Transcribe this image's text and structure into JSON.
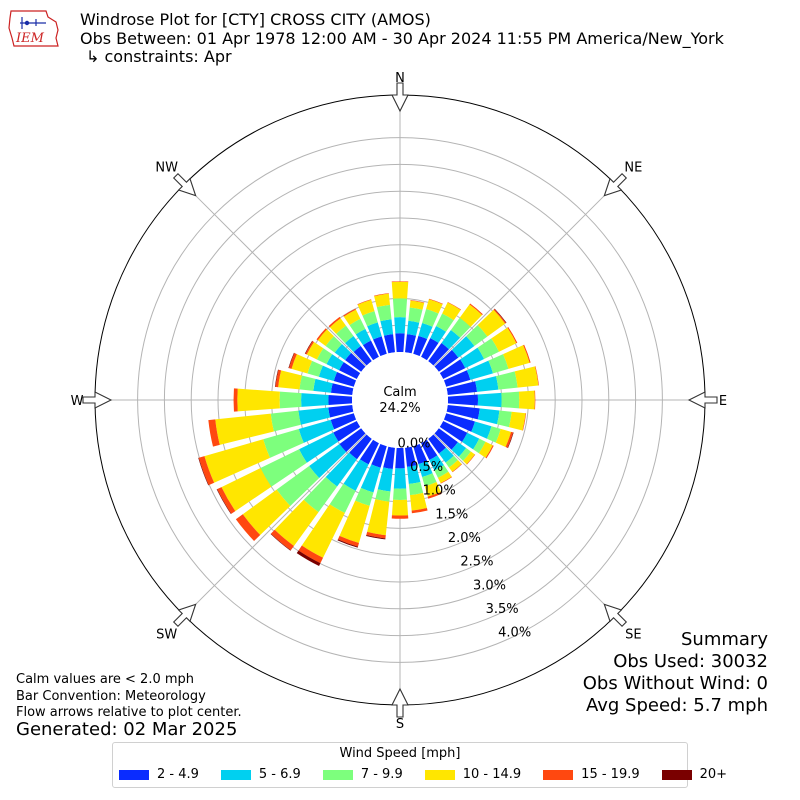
{
  "header": {
    "logo_text": "IEM",
    "title_line1": "Windrose Plot for [CTY] CROSS CITY (AMOS)",
    "title_line2": "Obs Between: 01 Apr 1978 12:00 AM - 30 Apr 2024 11:55 PM America/New_York",
    "title_line3": "↳ constraints: Apr"
  },
  "calm": {
    "label": "Calm",
    "value": "24.2%"
  },
  "notes": {
    "calm_def": "Calm values are < 2.0 mph",
    "bar_conv": "Bar Convention: Meteorology",
    "flow": "Flow arrows relative to plot center.",
    "generated": "Generated: 02 Mar 2025"
  },
  "summary": {
    "title": "Summary",
    "obs_used": "Obs Used: 30032",
    "obs_without_wind": "Obs Without Wind: 0",
    "avg_speed": "Avg Speed: 5.7 mph"
  },
  "legend": {
    "title": "Wind Speed [mph]"
  },
  "colors": {
    "bins": [
      "#0a2cff",
      "#00d0f0",
      "#7dff7d",
      "#ffe600",
      "#ff4810",
      "#7a0000"
    ],
    "grid": "#b4b4b4",
    "logo_red": "#cc2222",
    "logo_blue": "#1a2ea8"
  },
  "chart_data": {
    "type": "windrose",
    "calm_percent": 24.2,
    "radial_axis": {
      "min": 0,
      "max": 4.0,
      "unit": "%",
      "ticks": [
        "0.0%",
        "0.5%",
        "1.0%",
        "1.5%",
        "2.0%",
        "2.5%",
        "3.0%",
        "3.5%",
        "4.0%"
      ]
    },
    "compass_labels": [
      "N",
      "NE",
      "E",
      "SE",
      "S",
      "SW",
      "W",
      "NW"
    ],
    "speed_bins": [
      "2 - 4.9",
      "5 - 6.9",
      "7 - 9.9",
      "10 - 14.9",
      "15 - 19.9",
      "20+"
    ],
    "directions_deg": [
      0,
      10,
      20,
      30,
      40,
      50,
      60,
      70,
      80,
      90,
      100,
      110,
      120,
      130,
      140,
      150,
      160,
      170,
      180,
      190,
      200,
      210,
      220,
      230,
      240,
      250,
      260,
      270,
      280,
      290,
      300,
      310,
      320,
      330,
      340,
      350
    ],
    "cumulative_percent": [
      [
        0.35,
        0.65,
        1.0,
        1.31,
        1.32,
        1.32
      ],
      [
        0.34,
        0.59,
        0.84,
        0.97,
        0.98,
        0.98
      ],
      [
        0.35,
        0.6,
        0.87,
        1.06,
        1.07,
        1.07
      ],
      [
        0.39,
        0.64,
        0.9,
        1.13,
        1.14,
        1.14
      ],
      [
        0.42,
        0.72,
        1.0,
        1.31,
        1.33,
        1.33
      ],
      [
        0.45,
        0.82,
        1.12,
        1.53,
        1.55,
        1.56
      ],
      [
        0.46,
        0.85,
        1.16,
        1.52,
        1.54,
        1.54
      ],
      [
        0.47,
        0.91,
        1.21,
        1.62,
        1.64,
        1.64
      ],
      [
        0.55,
        0.95,
        1.31,
        1.7,
        1.71,
        1.71
      ],
      [
        0.56,
        1.0,
        1.33,
        1.62,
        1.63,
        1.63
      ],
      [
        0.6,
        0.97,
        1.2,
        1.46,
        1.47,
        1.47
      ],
      [
        0.56,
        0.88,
        1.06,
        1.26,
        1.3,
        1.31
      ],
      [
        0.5,
        0.75,
        0.88,
        1.03,
        1.05,
        1.05
      ],
      [
        0.44,
        0.63,
        0.74,
        0.83,
        0.84,
        0.84
      ],
      [
        0.34,
        0.55,
        0.66,
        0.76,
        0.77,
        0.77
      ],
      [
        0.35,
        0.57,
        0.72,
        0.83,
        0.84,
        0.84
      ],
      [
        0.35,
        0.6,
        0.78,
        0.98,
        1.02,
        1.02
      ],
      [
        0.36,
        0.68,
        0.89,
        1.18,
        1.23,
        1.23
      ],
      [
        0.38,
        0.76,
        0.97,
        1.26,
        1.32,
        1.32
      ],
      [
        0.4,
        0.82,
        1.01,
        1.64,
        1.7,
        1.72
      ],
      [
        0.42,
        0.9,
        1.16,
        1.88,
        1.95,
        1.97
      ],
      [
        0.44,
        0.99,
        1.45,
        2.38,
        2.49,
        2.55
      ],
      [
        0.47,
        1.1,
        1.69,
        2.47,
        2.57,
        2.58
      ],
      [
        0.5,
        1.2,
        1.95,
        2.73,
        2.89,
        2.89
      ],
      [
        0.49,
        1.2,
        2.0,
        2.81,
        2.9,
        2.91
      ],
      [
        0.45,
        1.07,
        1.76,
        2.9,
        3.01,
        3.02
      ],
      [
        0.45,
        1.01,
        1.53,
        2.57,
        2.7,
        2.7
      ],
      [
        0.44,
        0.95,
        1.35,
        2.14,
        2.21,
        2.21
      ],
      [
        0.4,
        0.73,
        0.99,
        1.39,
        1.44,
        1.45
      ],
      [
        0.39,
        0.68,
        0.9,
        1.21,
        1.26,
        1.27
      ],
      [
        0.37,
        0.63,
        0.83,
        1.04,
        1.07,
        1.08
      ],
      [
        0.37,
        0.61,
        0.82,
        1.0,
        1.03,
        1.03
      ],
      [
        0.35,
        0.58,
        0.82,
        0.99,
        1.02,
        1.02
      ],
      [
        0.34,
        0.58,
        0.79,
        0.98,
        1.0,
        1.0
      ],
      [
        0.34,
        0.61,
        0.83,
        1.05,
        1.06,
        1.06
      ],
      [
        0.34,
        0.62,
        0.89,
        1.1,
        1.11,
        1.11
      ]
    ]
  }
}
